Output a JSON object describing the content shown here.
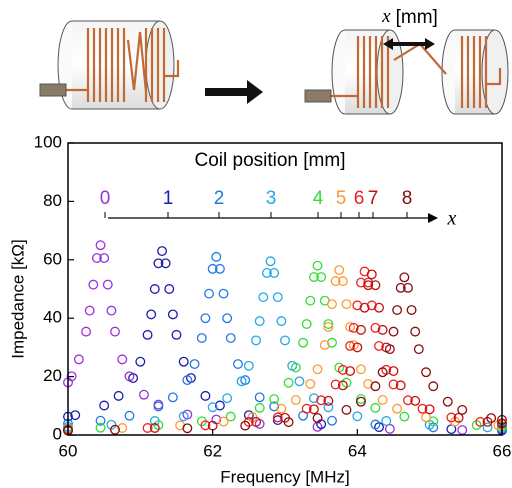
{
  "chart_data": {
    "type": "scatter",
    "xlabel": "Frequency [MHz]",
    "ylabel": "Impedance [kΩ]",
    "legend_title": "Coil position [mm]",
    "legend_axis_symbol": "x",
    "top_label": {
      "symbol": "x",
      "unit": "[mm]"
    },
    "xlim": [
      60,
      66
    ],
    "ylim": [
      0,
      100
    ],
    "xticks": [
      60,
      62,
      64,
      66
    ],
    "yticks": [
      0,
      20,
      40,
      60,
      80,
      100
    ],
    "series": [
      {
        "name": "0",
        "color": "#9b30e0",
        "x": [
          60.0,
          60.05,
          60.15,
          60.25,
          60.3,
          60.35,
          60.4,
          60.45,
          60.5,
          60.55,
          60.6,
          60.65,
          60.75,
          60.85,
          61.05,
          61.25,
          61.65,
          62.05,
          62.65,
          63.45,
          64.45,
          65.45,
          66.0
        ],
        "values": [
          18.0,
          20.1,
          25.9,
          35.4,
          42.6,
          51.5,
          60.6,
          65,
          60.6,
          51.5,
          42.6,
          35.4,
          25.9,
          20.1,
          13.8,
          10.4,
          7.0,
          5.3,
          3.8,
          2.8,
          2.1,
          1.7,
          1.5
        ]
      },
      {
        "name": "1",
        "color": "#1b1bb0",
        "x": [
          60.0,
          60.1,
          60.5,
          60.7,
          60.9,
          61.0,
          61.1,
          61.15,
          61.2,
          61.25,
          61.3,
          61.35,
          61.4,
          61.45,
          61.5,
          61.6,
          61.7,
          61.9,
          62.1,
          62.5,
          62.9,
          63.5,
          64.3,
          65.3,
          66.0
        ],
        "values": [
          6.3,
          6.8,
          10.1,
          13.4,
          19.5,
          25.1,
          34.3,
          41.3,
          50.0,
          58.8,
          63,
          58.8,
          50.0,
          41.3,
          34.3,
          25.1,
          19.5,
          13.4,
          10.1,
          6.8,
          5.1,
          3.7,
          2.7,
          2.0,
          1.7
        ]
      },
      {
        "name": "2",
        "color": "#2277e6",
        "x": [
          60.0,
          60.45,
          60.85,
          61.25,
          61.45,
          61.65,
          61.75,
          61.85,
          61.9,
          61.95,
          62.0,
          62.05,
          62.1,
          62.15,
          62.2,
          62.25,
          62.35,
          62.45,
          62.65,
          62.85,
          63.25,
          63.65,
          64.25,
          65.05,
          66.0
        ],
        "values": [
          3.9,
          4.9,
          6.6,
          9.8,
          12.9,
          18.8,
          24.3,
          33.2,
          40.0,
          48.4,
          56.9,
          61,
          56.9,
          48.4,
          40.0,
          33.2,
          24.3,
          18.8,
          12.9,
          9.8,
          6.6,
          4.9,
          3.6,
          2.6,
          2.0
        ]
      },
      {
        "name": "3",
        "color": "#22a8e8",
        "x": [
          60.0,
          60.6,
          61.2,
          61.6,
          62.0,
          62.2,
          62.4,
          62.5,
          62.6,
          62.65,
          62.7,
          62.75,
          62.8,
          62.85,
          62.9,
          62.95,
          63.0,
          63.1,
          63.2,
          63.4,
          63.6,
          64.0,
          64.4,
          65.0,
          65.8,
          66.0
        ],
        "values": [
          2.8,
          3.5,
          4.8,
          6.4,
          9.5,
          12.6,
          18.4,
          23.7,
          32.4,
          39.0,
          47.2,
          55.5,
          59.5,
          55.5,
          47.2,
          39.0,
          32.4,
          23.7,
          18.4,
          12.6,
          9.5,
          6.4,
          4.8,
          3.5,
          2.6,
          2.4
        ]
      },
      {
        "name": "4",
        "color": "#33dd33",
        "x": [
          60.0,
          60.45,
          61.25,
          61.85,
          62.25,
          62.65,
          62.85,
          63.05,
          63.15,
          63.25,
          63.3,
          63.35,
          63.4,
          63.45,
          63.5,
          63.55,
          63.6,
          63.65,
          63.75,
          63.85,
          64.05,
          64.25,
          64.65,
          65.05,
          65.65,
          66.0
        ],
        "values": [
          2.2,
          2.5,
          3.4,
          4.7,
          6.3,
          9.3,
          12.3,
          17.9,
          23.1,
          31.6,
          38.0,
          46.0,
          54.1,
          58,
          54.1,
          46.0,
          38.0,
          31.6,
          23.1,
          17.9,
          12.3,
          9.3,
          6.3,
          4.7,
          3.4,
          3.0
        ]
      },
      {
        "name": "5",
        "color": "#ff9933",
        "x": [
          60.0,
          60.75,
          61.55,
          62.15,
          62.55,
          62.95,
          63.15,
          63.35,
          63.45,
          63.55,
          63.6,
          63.65,
          63.7,
          63.75,
          63.8,
          63.85,
          63.9,
          63.95,
          64.05,
          64.15,
          64.35,
          64.55,
          64.95,
          65.35,
          65.95
        ],
        "values": [
          2.0,
          2.4,
          3.3,
          4.6,
          6.1,
          9.0,
          12.0,
          17.5,
          22.5,
          30.8,
          37.0,
          44.8,
          52.7,
          56.5,
          52.7,
          44.8,
          37.0,
          30.8,
          22.5,
          17.5,
          12.0,
          9.0,
          6.1,
          4.6,
          3.3
        ]
      },
      {
        "name": "6",
        "color": "#ee2222",
        "x": [
          60.0,
          61.1,
          61.9,
          62.5,
          62.9,
          63.3,
          63.5,
          63.7,
          63.8,
          63.9,
          63.95,
          64.0,
          64.05,
          64.1,
          64.15,
          64.2,
          64.25,
          64.3,
          64.4,
          64.5,
          64.7,
          64.9,
          65.3,
          65.7,
          66.0
        ],
        "values": [
          1.8,
          2.4,
          3.3,
          4.5,
          6.0,
          9.0,
          11.9,
          17.3,
          22.3,
          30.5,
          36.7,
          44.4,
          52.2,
          56,
          52.2,
          44.4,
          36.7,
          30.5,
          22.3,
          17.3,
          11.9,
          9.0,
          6.0,
          4.5,
          3.8
        ]
      },
      {
        "name": "7",
        "color": "#c41010",
        "x": [
          60.0,
          61.2,
          62.0,
          62.6,
          63.0,
          63.4,
          63.6,
          63.8,
          63.9,
          64.0,
          64.05,
          64.1,
          64.15,
          64.2,
          64.25,
          64.3,
          64.35,
          64.4,
          64.5,
          64.6,
          64.8,
          65.0,
          65.4,
          65.8,
          66.0
        ],
        "values": [
          1.7,
          2.4,
          3.2,
          4.5,
          5.9,
          8.8,
          11.7,
          17.0,
          21.9,
          30.0,
          36.0,
          43.6,
          51.3,
          55,
          51.3,
          43.6,
          36.0,
          30.0,
          21.9,
          17.0,
          11.7,
          8.8,
          5.9,
          4.5,
          4.0
        ]
      },
      {
        "name": "8",
        "color": "#8b0a0a",
        "x": [
          60.0,
          60.65,
          61.65,
          62.45,
          63.05,
          63.45,
          63.85,
          64.05,
          64.25,
          64.35,
          64.45,
          64.5,
          64.55,
          64.6,
          64.65,
          64.7,
          64.75,
          64.8,
          64.85,
          64.95,
          65.05,
          65.25,
          65.45,
          65.85,
          66.0
        ],
        "values": [
          1.5,
          1.8,
          2.3,
          3.2,
          4.4,
          5.8,
          8.6,
          11.4,
          16.7,
          21.5,
          29.4,
          35.4,
          42.8,
          50.4,
          54,
          50.4,
          42.8,
          35.4,
          29.4,
          21.5,
          16.7,
          11.4,
          8.6,
          5.8,
          5.2
        ]
      }
    ]
  }
}
